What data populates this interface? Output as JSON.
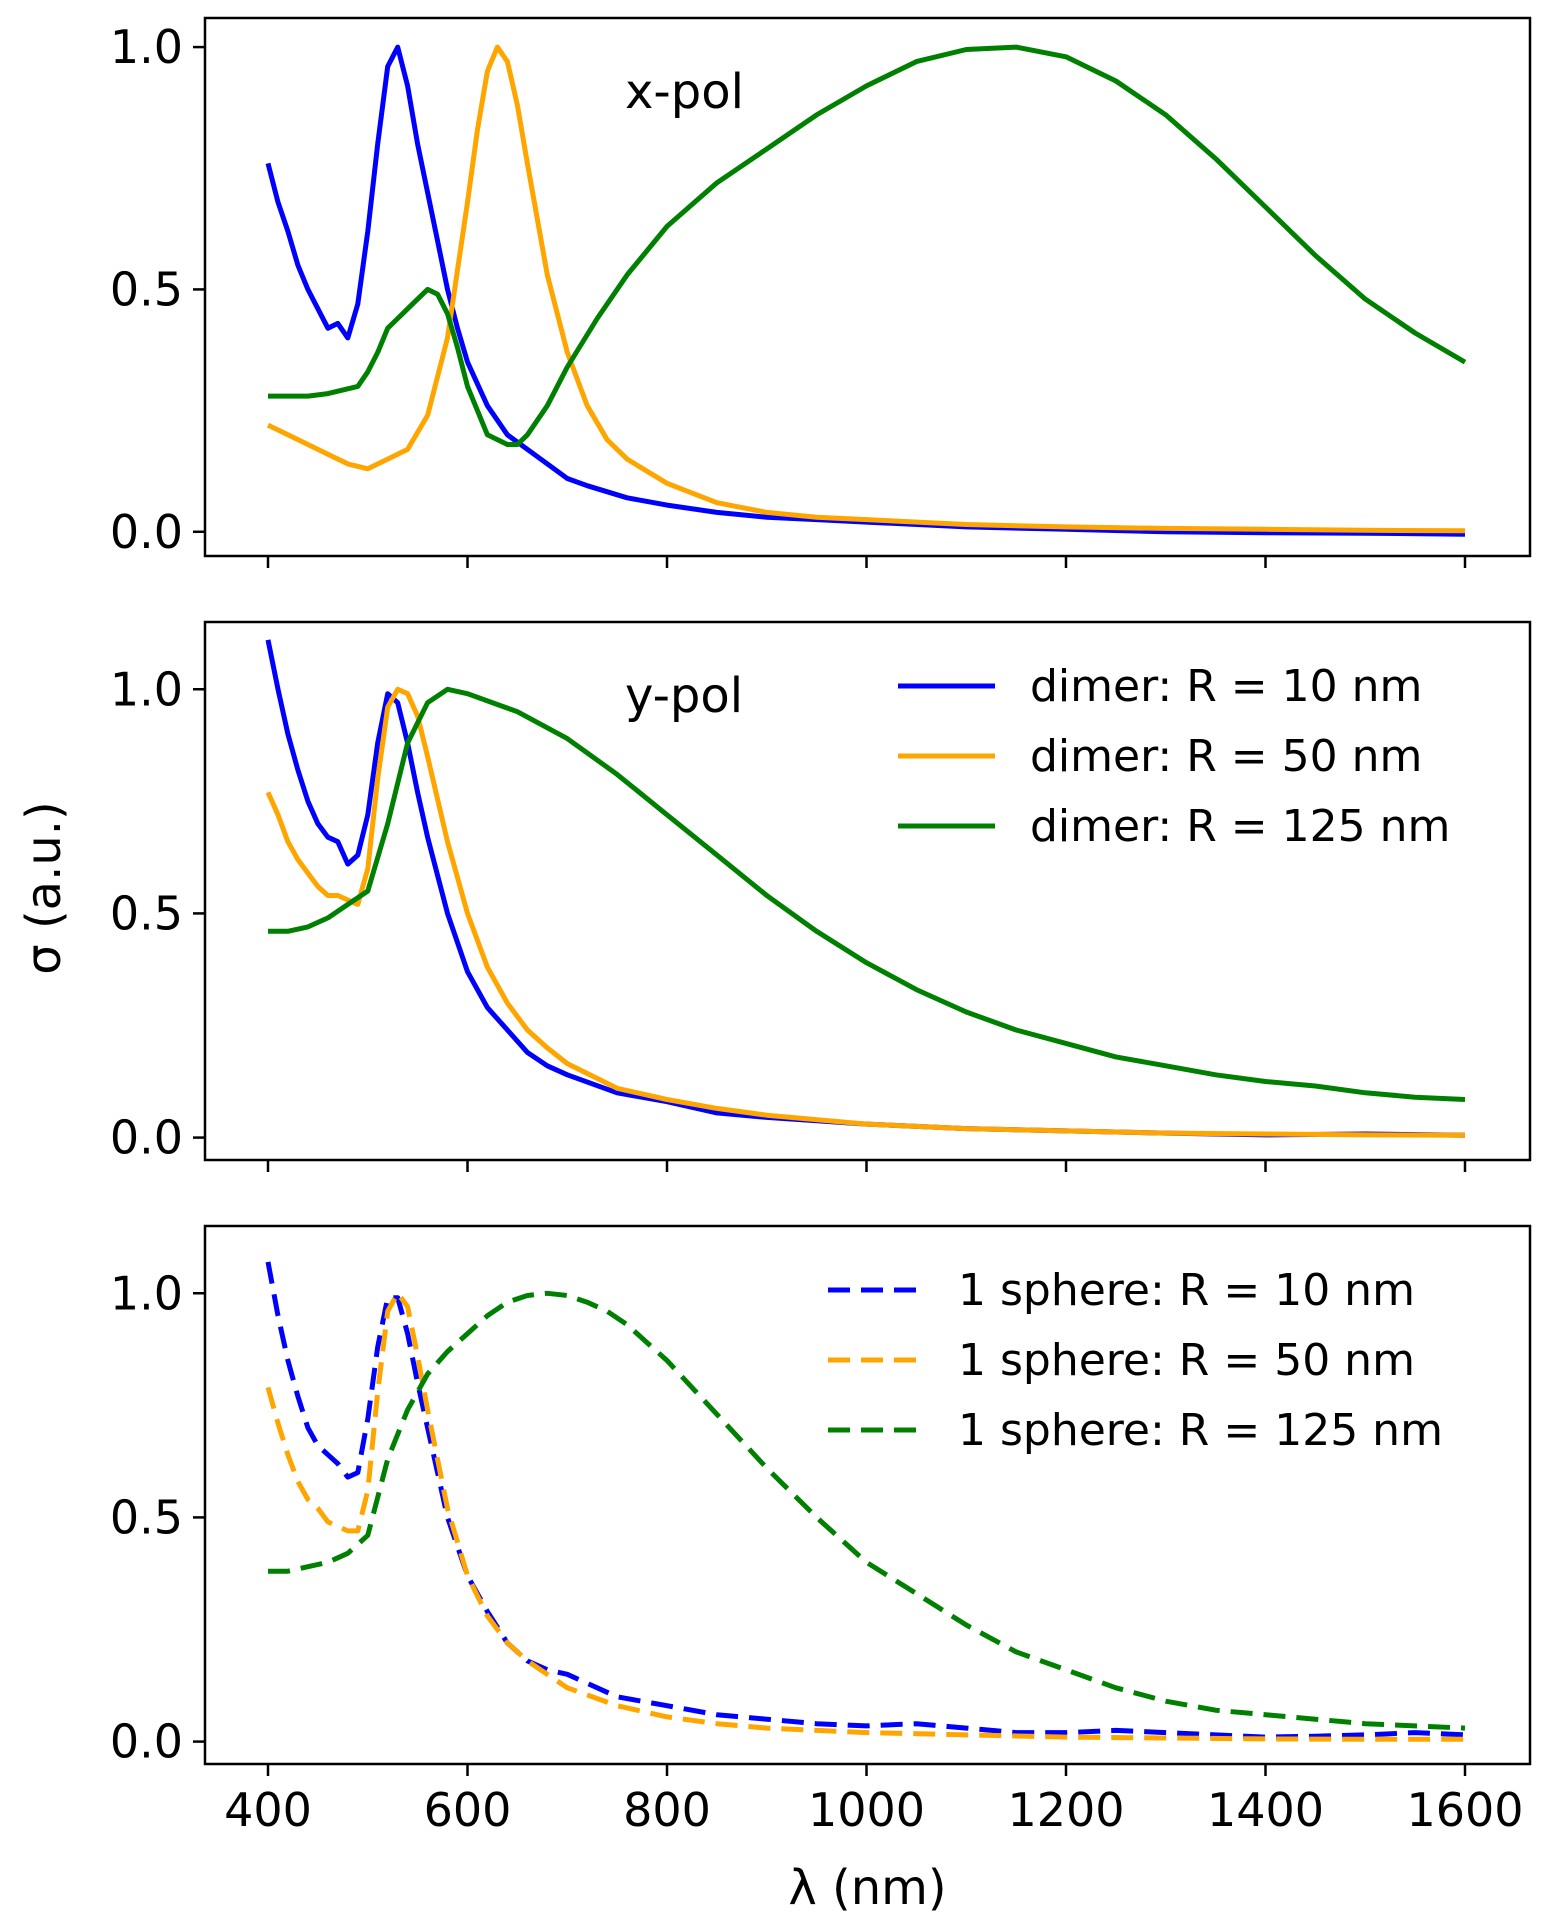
{
  "chart_data": [
    {
      "type": "line",
      "panel": "top",
      "annotation": "x-pol",
      "xlim": [
        400,
        1600
      ],
      "ylim": [
        -0.05,
        1.06
      ],
      "yticks": [
        "0.0",
        "0.5",
        "1.0"
      ],
      "legend": null,
      "series": [
        {
          "name": "dimer: R = 10 nm",
          "color": "#0000ff",
          "dash": "solid",
          "x": [
            400,
            410,
            420,
            430,
            440,
            450,
            460,
            470,
            480,
            490,
            500,
            510,
            520,
            530,
            540,
            550,
            560,
            570,
            580,
            590,
            600,
            620,
            640,
            660,
            680,
            700,
            720,
            760,
            800,
            850,
            900,
            950,
            1000,
            1100,
            1200,
            1300,
            1400,
            1500,
            1600
          ],
          "y": [
            0.76,
            0.68,
            0.62,
            0.55,
            0.5,
            0.46,
            0.42,
            0.43,
            0.4,
            0.47,
            0.62,
            0.8,
            0.96,
            1.0,
            0.92,
            0.8,
            0.7,
            0.6,
            0.5,
            0.42,
            0.35,
            0.26,
            0.2,
            0.17,
            0.14,
            0.11,
            0.095,
            0.07,
            0.055,
            0.04,
            0.03,
            0.025,
            0.02,
            0.01,
            0.005,
            0.0,
            -0.002,
            -0.003,
            -0.005
          ]
        },
        {
          "name": "dimer: R = 50 nm",
          "color": "#ffa500",
          "dash": "solid",
          "x": [
            400,
            420,
            440,
            460,
            480,
            500,
            520,
            540,
            560,
            580,
            600,
            610,
            620,
            630,
            640,
            650,
            660,
            680,
            700,
            720,
            740,
            760,
            800,
            850,
            900,
            950,
            1000,
            1100,
            1200,
            1300,
            1400,
            1500,
            1600
          ],
          "y": [
            0.22,
            0.2,
            0.18,
            0.16,
            0.14,
            0.13,
            0.15,
            0.17,
            0.24,
            0.4,
            0.68,
            0.83,
            0.95,
            1.0,
            0.97,
            0.88,
            0.76,
            0.53,
            0.37,
            0.26,
            0.19,
            0.15,
            0.1,
            0.06,
            0.04,
            0.03,
            0.025,
            0.015,
            0.01,
            0.007,
            0.005,
            0.003,
            0.002
          ]
        },
        {
          "name": "dimer: R = 125 nm",
          "color": "#008000",
          "dash": "solid",
          "x": [
            400,
            420,
            440,
            460,
            480,
            490,
            500,
            510,
            520,
            530,
            540,
            550,
            560,
            570,
            580,
            590,
            600,
            620,
            640,
            650,
            660,
            680,
            700,
            730,
            760,
            800,
            850,
            900,
            950,
            1000,
            1050,
            1100,
            1150,
            1200,
            1250,
            1300,
            1350,
            1400,
            1450,
            1500,
            1550,
            1600
          ],
          "y": [
            0.28,
            0.28,
            0.28,
            0.285,
            0.295,
            0.3,
            0.33,
            0.37,
            0.42,
            0.44,
            0.46,
            0.48,
            0.5,
            0.49,
            0.45,
            0.38,
            0.3,
            0.2,
            0.18,
            0.18,
            0.2,
            0.26,
            0.34,
            0.44,
            0.53,
            0.63,
            0.72,
            0.79,
            0.86,
            0.92,
            0.97,
            0.995,
            1.0,
            0.98,
            0.93,
            0.86,
            0.77,
            0.67,
            0.57,
            0.48,
            0.41,
            0.35
          ]
        }
      ]
    },
    {
      "type": "line",
      "panel": "middle",
      "annotation": "y-pol",
      "xlim": [
        400,
        1600
      ],
      "ylim": [
        -0.05,
        1.15
      ],
      "yticks": [
        "0.0",
        "0.5",
        "1.0"
      ],
      "legend": {
        "placement": "upper-right",
        "entries": [
          "dimer: R = 10 nm",
          "dimer: R = 50 nm",
          "dimer: R = 125 nm"
        ]
      },
      "series": [
        {
          "name": "dimer: R = 10 nm",
          "color": "#0000ff",
          "dash": "solid",
          "x": [
            400,
            410,
            420,
            430,
            440,
            450,
            460,
            470,
            480,
            490,
            500,
            510,
            520,
            530,
            540,
            550,
            560,
            580,
            600,
            620,
            640,
            660,
            680,
            700,
            750,
            800,
            850,
            900,
            1000,
            1100,
            1200,
            1300,
            1400,
            1500,
            1600
          ],
          "y": [
            1.11,
            1.0,
            0.9,
            0.82,
            0.75,
            0.7,
            0.67,
            0.66,
            0.61,
            0.63,
            0.72,
            0.88,
            0.99,
            0.97,
            0.88,
            0.77,
            0.67,
            0.5,
            0.37,
            0.29,
            0.24,
            0.19,
            0.16,
            0.14,
            0.1,
            0.08,
            0.055,
            0.045,
            0.03,
            0.02,
            0.015,
            0.01,
            0.006,
            0.008,
            0.005
          ]
        },
        {
          "name": "dimer: R = 50 nm",
          "color": "#ffa500",
          "dash": "solid",
          "x": [
            400,
            410,
            420,
            430,
            440,
            450,
            460,
            470,
            480,
            490,
            500,
            510,
            520,
            530,
            540,
            550,
            560,
            580,
            600,
            620,
            640,
            660,
            680,
            700,
            750,
            800,
            850,
            900,
            1000,
            1100,
            1200,
            1300,
            1400,
            1500,
            1600
          ],
          "y": [
            0.77,
            0.72,
            0.66,
            0.62,
            0.59,
            0.56,
            0.54,
            0.54,
            0.53,
            0.52,
            0.6,
            0.8,
            0.96,
            1.0,
            0.99,
            0.94,
            0.85,
            0.66,
            0.5,
            0.38,
            0.3,
            0.24,
            0.2,
            0.165,
            0.11,
            0.085,
            0.065,
            0.05,
            0.03,
            0.02,
            0.015,
            0.01,
            0.008,
            0.006,
            0.005
          ]
        },
        {
          "name": "dimer: R = 125 nm",
          "color": "#008000",
          "dash": "solid",
          "x": [
            400,
            420,
            440,
            460,
            480,
            500,
            520,
            540,
            560,
            580,
            600,
            650,
            700,
            750,
            800,
            850,
            900,
            950,
            1000,
            1050,
            1100,
            1150,
            1200,
            1250,
            1300,
            1350,
            1400,
            1450,
            1500,
            1550,
            1600
          ],
          "y": [
            0.46,
            0.46,
            0.47,
            0.49,
            0.52,
            0.55,
            0.7,
            0.88,
            0.97,
            1.0,
            0.99,
            0.95,
            0.89,
            0.81,
            0.72,
            0.63,
            0.54,
            0.46,
            0.39,
            0.33,
            0.28,
            0.24,
            0.21,
            0.18,
            0.16,
            0.14,
            0.125,
            0.115,
            0.1,
            0.09,
            0.085
          ]
        }
      ]
    },
    {
      "type": "line",
      "panel": "bottom",
      "annotation": "",
      "xlim": [
        400,
        1600
      ],
      "ylim": [
        -0.05,
        1.15
      ],
      "yticks": [
        "0.0",
        "0.5",
        "1.0"
      ],
      "xticks": [
        "400",
        "600",
        "800",
        "1000",
        "1200",
        "1400",
        "1600"
      ],
      "xlabel": "λ (nm)",
      "legend": {
        "placement": "upper-right",
        "entries": [
          "1 sphere: R = 10 nm",
          "1 sphere: R = 50 nm",
          "1 sphere: R = 125 nm"
        ]
      },
      "series": [
        {
          "name": "1 sphere: R = 10 nm",
          "color": "#0000ff",
          "dash": "dashed",
          "x": [
            400,
            410,
            420,
            430,
            440,
            450,
            460,
            470,
            480,
            490,
            500,
            510,
            520,
            530,
            540,
            550,
            560,
            580,
            600,
            620,
            640,
            660,
            680,
            700,
            750,
            800,
            850,
            900,
            950,
            1000,
            1050,
            1100,
            1150,
            1200,
            1250,
            1300,
            1350,
            1400,
            1450,
            1500,
            1550,
            1600
          ],
          "y": [
            1.07,
            0.95,
            0.85,
            0.77,
            0.7,
            0.66,
            0.64,
            0.62,
            0.59,
            0.6,
            0.72,
            0.88,
            0.99,
            0.99,
            0.91,
            0.8,
            0.7,
            0.5,
            0.37,
            0.29,
            0.22,
            0.18,
            0.16,
            0.15,
            0.1,
            0.08,
            0.06,
            0.05,
            0.04,
            0.035,
            0.04,
            0.03,
            0.02,
            0.02,
            0.025,
            0.02,
            0.015,
            0.01,
            0.012,
            0.015,
            0.02,
            0.015
          ]
        },
        {
          "name": "1 sphere: R = 50 nm",
          "color": "#ffa500",
          "dash": "dashed",
          "x": [
            400,
            410,
            420,
            430,
            440,
            450,
            460,
            470,
            480,
            490,
            500,
            510,
            520,
            530,
            540,
            550,
            560,
            580,
            600,
            620,
            640,
            660,
            680,
            700,
            750,
            800,
            850,
            900,
            1000,
            1100,
            1200,
            1300,
            1400,
            1500,
            1600
          ],
          "y": [
            0.79,
            0.71,
            0.64,
            0.58,
            0.54,
            0.52,
            0.49,
            0.48,
            0.47,
            0.47,
            0.56,
            0.78,
            0.96,
            1.0,
            0.97,
            0.86,
            0.74,
            0.52,
            0.37,
            0.28,
            0.22,
            0.18,
            0.15,
            0.12,
            0.08,
            0.055,
            0.04,
            0.03,
            0.02,
            0.015,
            0.01,
            0.008,
            0.006,
            0.005,
            0.005
          ]
        },
        {
          "name": "1 sphere: R = 125 nm",
          "color": "#008000",
          "dash": "dashed",
          "x": [
            400,
            420,
            440,
            460,
            480,
            500,
            520,
            540,
            560,
            580,
            600,
            620,
            640,
            660,
            680,
            700,
            720,
            740,
            760,
            780,
            800,
            850,
            900,
            950,
            1000,
            1050,
            1100,
            1150,
            1200,
            1250,
            1300,
            1350,
            1400,
            1450,
            1500,
            1550,
            1600
          ],
          "y": [
            0.38,
            0.38,
            0.39,
            0.4,
            0.42,
            0.46,
            0.63,
            0.74,
            0.82,
            0.87,
            0.91,
            0.95,
            0.98,
            0.995,
            1.0,
            0.995,
            0.98,
            0.96,
            0.93,
            0.89,
            0.85,
            0.73,
            0.61,
            0.5,
            0.4,
            0.33,
            0.26,
            0.2,
            0.16,
            0.12,
            0.09,
            0.07,
            0.06,
            0.05,
            0.04,
            0.035,
            0.03
          ]
        }
      ]
    }
  ],
  "ylabel": "σ (a.u.)"
}
